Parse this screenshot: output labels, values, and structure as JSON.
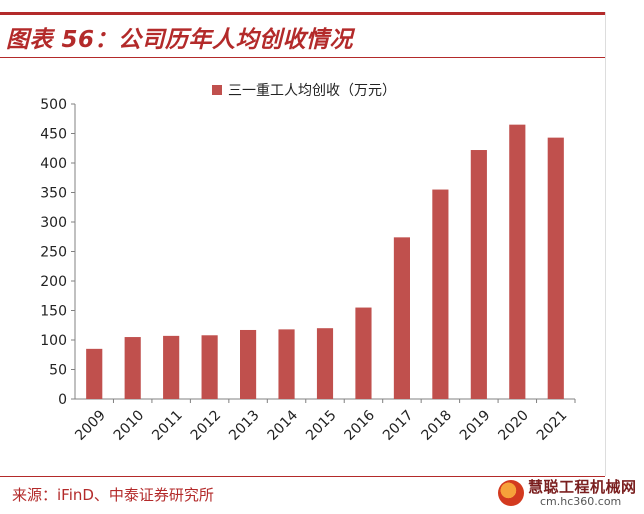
{
  "header": {
    "title": "图表 56：公司历年人均创收情况"
  },
  "footer": {
    "source": "来源：iFinD、中泰证券研究所"
  },
  "watermark": {
    "brand": "慧聪工程机械网",
    "site": "cm.hc360.com"
  },
  "colors": {
    "accent": "#b32a2a",
    "bar": "#c0504d"
  },
  "chart_data": {
    "type": "bar",
    "categories": [
      "2009",
      "2010",
      "2011",
      "2012",
      "2013",
      "2014",
      "2015",
      "2016",
      "2017",
      "2018",
      "2019",
      "2020",
      "2021"
    ],
    "series": [
      {
        "name": "三一重工人均创收（万元）",
        "values": [
          85,
          105,
          107,
          108,
          117,
          118,
          120,
          155,
          274,
          355,
          422,
          465,
          443
        ]
      }
    ],
    "ylim": [
      0,
      500
    ],
    "yticks": [
      0,
      50,
      100,
      150,
      200,
      250,
      300,
      350,
      400,
      450,
      500
    ],
    "legend_position": "top-center",
    "grid": false
  }
}
